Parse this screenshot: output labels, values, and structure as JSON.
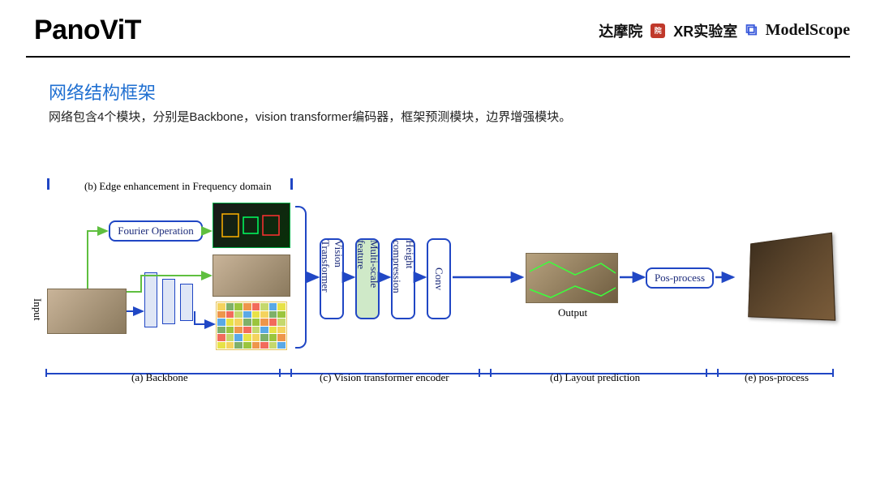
{
  "header": {
    "title": "PanoViT",
    "brand1": "达摩院",
    "brand2": "XR实验室",
    "brand3": "ModelScope"
  },
  "subhead": {
    "title": "网络结构框架",
    "desc": "网络包含4个模块，分别是Backbone，vision transformer编码器，框架预测模块，边界增强模块。"
  },
  "section_labels": {
    "b": "(b) Edge enhancement in Frequency domain",
    "a": "(a)  Backbone",
    "c": "(c) Vision transformer encoder",
    "d": "(d)  Layout prediction",
    "e": "(e)  pos-process"
  },
  "blocks": {
    "fourier": "Fourier Operation",
    "vit": "Vision Transformer",
    "msf": "Multi-scale feature",
    "hcomp": "Height compression",
    "conv": "Conv",
    "posprocess": "Pos-process",
    "output": "Output",
    "input": "Input"
  },
  "style": {
    "node_border": "#2046c4",
    "node_text": "#1b2a7a",
    "arrow_blue": "#2047c5",
    "arrow_green": "#5fbf3f",
    "msf_fill": "#cfe9c8",
    "section_title_color": "#1f6fd1",
    "fontsize_section": 22,
    "fontsize_desc": 15,
    "fontsize_block": 13,
    "fontsize_label": 13
  },
  "mosaic_colors": [
    "#f4d35e",
    "#ee964b",
    "#5aa9e6",
    "#7fb069",
    "#f26b5b",
    "#e7e247",
    "#9bc53d",
    "#c5d86d"
  ]
}
